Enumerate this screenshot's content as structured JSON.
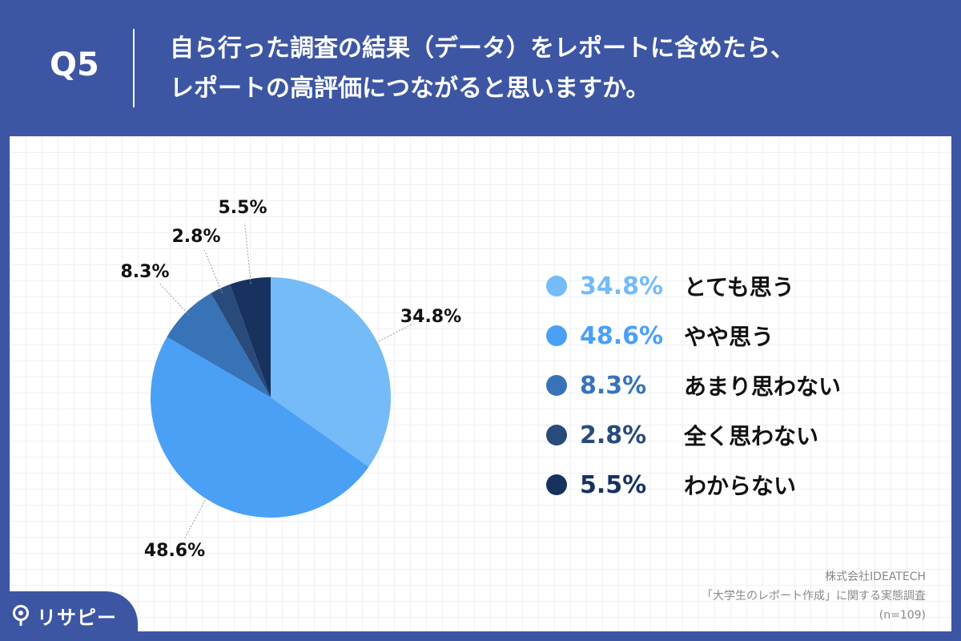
{
  "header": {
    "question_label": "Q5",
    "title_line1": "自ら行った調査の結果（データ）をレポートに含めたら、",
    "title_line2": "レポートの高評価につながると思いますか。"
  },
  "chart_data": {
    "type": "pie",
    "start_angle": "12 o'clock",
    "direction": "clockwise",
    "legend_position": "right",
    "slices": [
      {
        "label": "とても思う",
        "value": 34.8,
        "value_label": "34.8%",
        "color": "#74bbf7"
      },
      {
        "label": "やや思う",
        "value": 48.6,
        "value_label": "48.6%",
        "color": "#4aa0f5"
      },
      {
        "label": "あまり思わない",
        "value": 8.3,
        "value_label": "8.3%",
        "color": "#3873b8"
      },
      {
        "label": "全く思わない",
        "value": 2.8,
        "value_label": "2.8%",
        "color": "#284b7c"
      },
      {
        "label": "わからない",
        "value": 5.5,
        "value_label": "5.5%",
        "color": "#18325f"
      }
    ]
  },
  "source": {
    "company": "株式会社IDEATECH",
    "survey": "「大学生のレポート作成」に関する実態調査",
    "sample": "(n=109)"
  },
  "logo": {
    "text": "リサピー"
  }
}
